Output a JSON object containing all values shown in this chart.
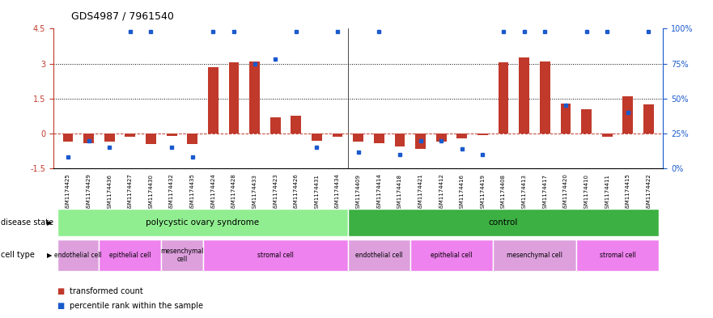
{
  "title": "GDS4987 / 7961540",
  "samples": [
    "GSM1174425",
    "GSM1174429",
    "GSM1174436",
    "GSM1174427",
    "GSM1174430",
    "GSM1174432",
    "GSM1174435",
    "GSM1174424",
    "GSM1174428",
    "GSM1174433",
    "GSM1174423",
    "GSM1174426",
    "GSM1174431",
    "GSM1174434",
    "GSM1174409",
    "GSM1174414",
    "GSM1174418",
    "GSM1174421",
    "GSM1174412",
    "GSM1174416",
    "GSM1174419",
    "GSM1174408",
    "GSM1174413",
    "GSM1174417",
    "GSM1174420",
    "GSM1174410",
    "GSM1174411",
    "GSM1174415",
    "GSM1174422"
  ],
  "transformed_count": [
    -0.35,
    -0.4,
    -0.35,
    -0.15,
    -0.45,
    -0.1,
    -0.45,
    2.85,
    3.05,
    3.1,
    0.7,
    0.75,
    -0.3,
    -0.15,
    -0.35,
    -0.4,
    -0.55,
    -0.65,
    -0.35,
    -0.2,
    -0.05,
    3.05,
    3.25,
    3.1,
    1.3,
    1.05,
    -0.15,
    1.6,
    1.25
  ],
  "percentile_rank": [
    8,
    20,
    15,
    98,
    98,
    15,
    8,
    98,
    98,
    75,
    78,
    98,
    15,
    98,
    12,
    98,
    10,
    20,
    20,
    14,
    10,
    98,
    98,
    98,
    45,
    98,
    98,
    40,
    98
  ],
  "ylim": [
    -1.5,
    4.5
  ],
  "yticks_left": [
    -1.5,
    0,
    1.5,
    3,
    4.5
  ],
  "yticks_right_vals": [
    0,
    25,
    50,
    75,
    100
  ],
  "bar_color": "#c0392b",
  "dot_color": "#1a5acd",
  "disease_state_groups": [
    {
      "label": "polycystic ovary syndrome",
      "start": 0,
      "end": 13,
      "color": "#90ee90"
    },
    {
      "label": "control",
      "start": 14,
      "end": 28,
      "color": "#3cb043"
    }
  ],
  "cell_type_groups": [
    {
      "label": "endothelial cell",
      "start": 0,
      "end": 1,
      "color": "#dda0dd"
    },
    {
      "label": "epithelial cell",
      "start": 2,
      "end": 4,
      "color": "#ee82ee"
    },
    {
      "label": "mesenchymal\ncell",
      "start": 5,
      "end": 6,
      "color": "#dda0dd"
    },
    {
      "label": "stromal cell",
      "start": 7,
      "end": 13,
      "color": "#ee82ee"
    },
    {
      "label": "endothelial cell",
      "start": 14,
      "end": 16,
      "color": "#dda0dd"
    },
    {
      "label": "epithelial cell",
      "start": 17,
      "end": 20,
      "color": "#ee82ee"
    },
    {
      "label": "mesenchymal cell",
      "start": 21,
      "end": 24,
      "color": "#dda0dd"
    },
    {
      "label": "stromal cell",
      "start": 25,
      "end": 28,
      "color": "#ee82ee"
    }
  ],
  "legend_items": [
    {
      "label": "transformed count",
      "color": "#c0392b"
    },
    {
      "label": "percentile rank within the sample",
      "color": "#1a5acd"
    }
  ],
  "background_color": "#ffffff"
}
